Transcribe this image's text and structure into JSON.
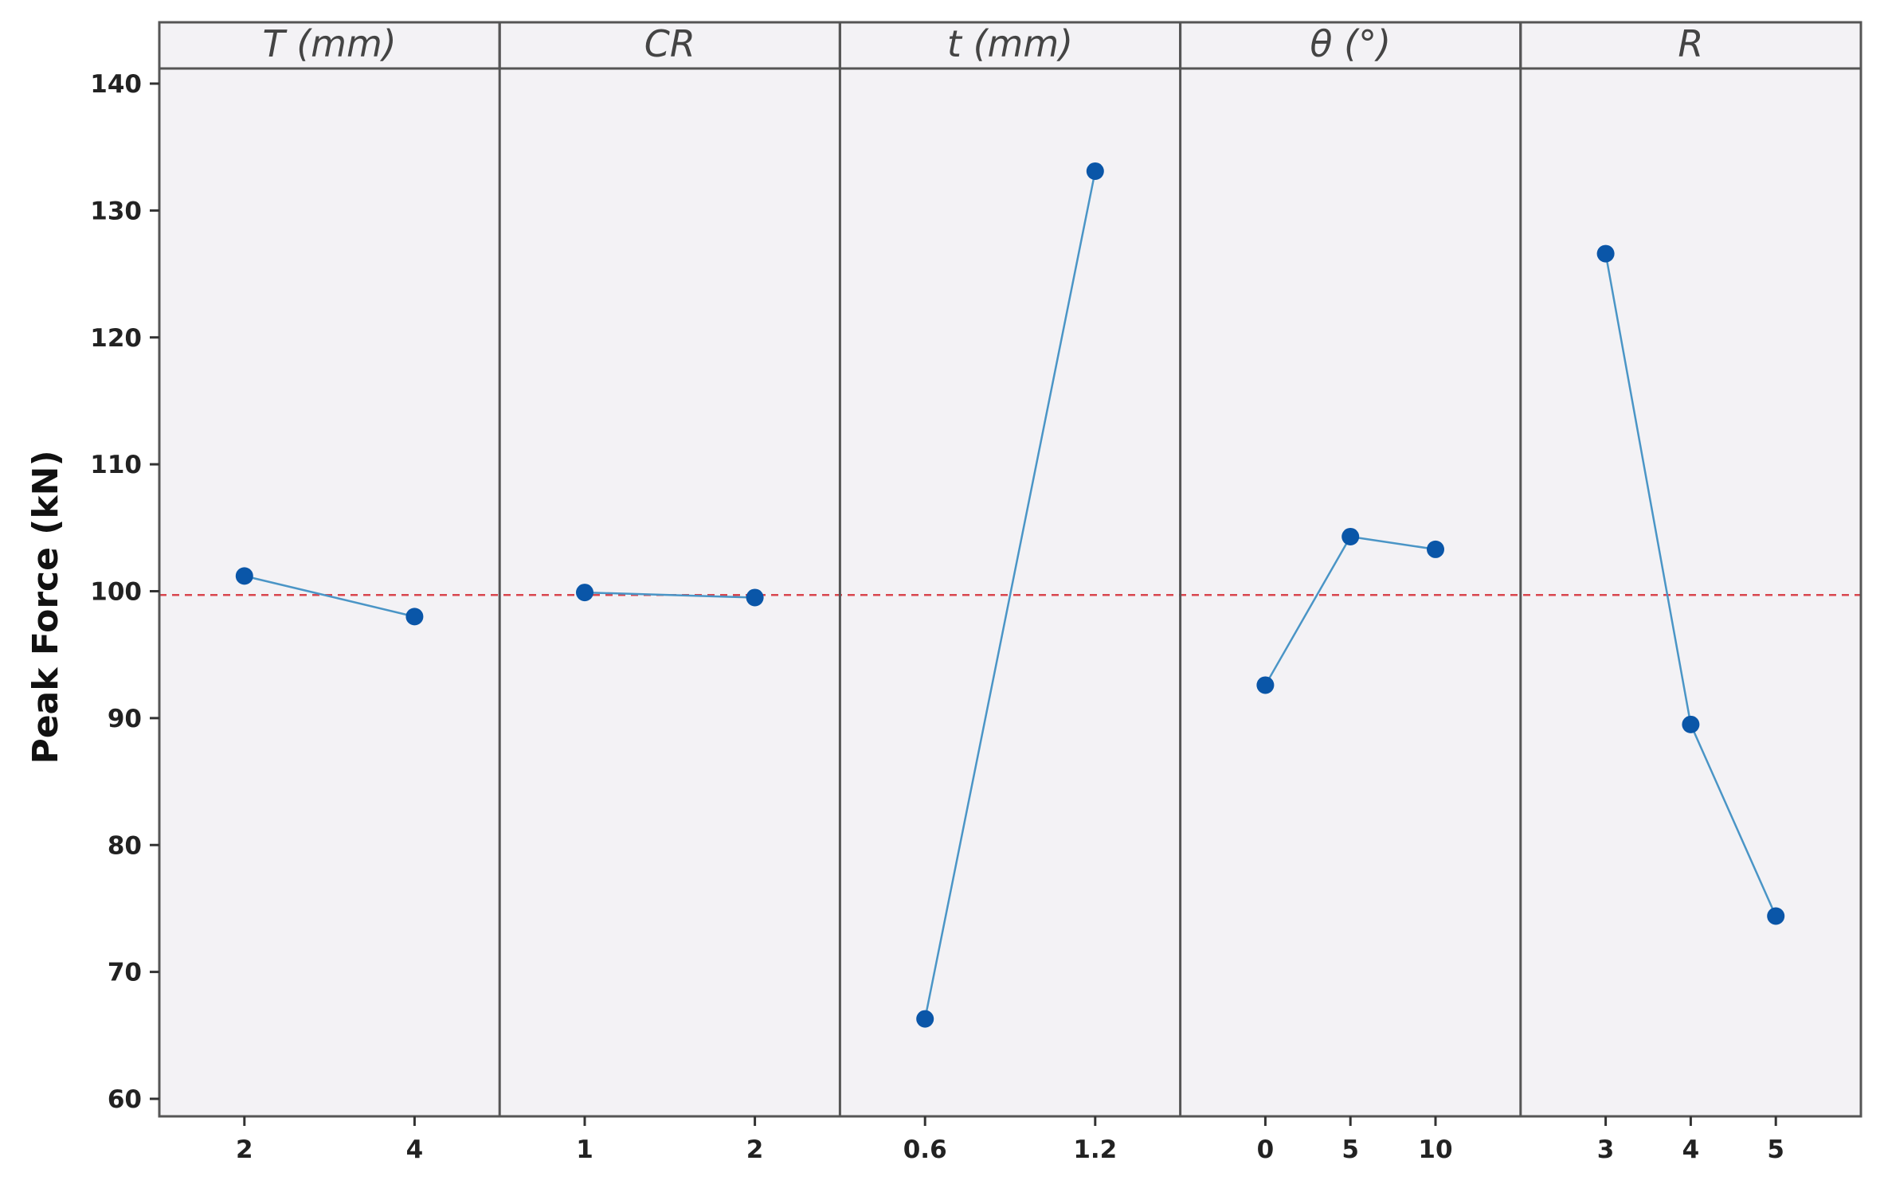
{
  "chart_data": {
    "type": "line",
    "ylabel": "Peak Force (kN)",
    "ylim": [
      60,
      140
    ],
    "yticks": [
      60,
      70,
      80,
      90,
      100,
      110,
      120,
      130,
      140
    ],
    "reference_line": {
      "value": 99.7,
      "style": "dashed",
      "color": "#d9464e"
    },
    "colors": {
      "line": "#4a95c6",
      "marker": "#0a56a8",
      "background": "#f3f2f5"
    },
    "grid": false,
    "panels": [
      {
        "factor": "T (mm)",
        "levels": [
          "2",
          "4"
        ],
        "values": [
          101.2,
          98.0
        ]
      },
      {
        "factor": "CR",
        "levels": [
          "1",
          "2"
        ],
        "values": [
          99.9,
          99.5
        ]
      },
      {
        "factor": "t (mm)",
        "levels": [
          "0.6",
          "1.2"
        ],
        "values": [
          66.3,
          133.1
        ]
      },
      {
        "factor": "θ (°)",
        "levels": [
          "0",
          "5",
          "10"
        ],
        "values": [
          92.6,
          104.3,
          103.3
        ]
      },
      {
        "factor": "R",
        "levels": [
          "3",
          "4",
          "5"
        ],
        "values": [
          126.6,
          89.5,
          74.4
        ]
      }
    ]
  }
}
